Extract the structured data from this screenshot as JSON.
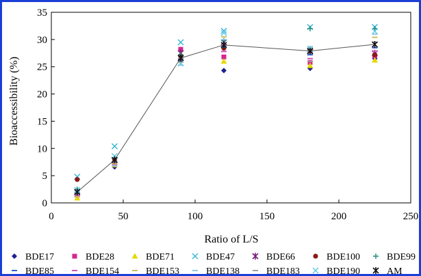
{
  "chart_data": {
    "type": "scatter",
    "title": "",
    "xlabel": "Ratio of L/S",
    "ylabel": "Bioaccessibility (%)",
    "xlim": [
      0,
      250
    ],
    "ylim": [
      0,
      35
    ],
    "xticks": [
      "0",
      "50",
      "100",
      "150",
      "200",
      "250"
    ],
    "yticks": [
      "0",
      "5",
      "10",
      "15",
      "20",
      "25",
      "30",
      "35"
    ],
    "x": [
      18,
      44,
      90,
      120,
      180,
      225
    ],
    "legend_position": "bottom",
    "grid": false,
    "series": [
      {
        "name": "BDE17",
        "marker": "diamond",
        "color": "#1f1f8f",
        "values": [
          1.5,
          6.6,
          26.0,
          24.3,
          24.7,
          26.5
        ]
      },
      {
        "name": "BDE28",
        "marker": "square",
        "color": "#d6258f",
        "values": [
          1.4,
          7.3,
          28.2,
          26.8,
          25.8,
          27.0
        ]
      },
      {
        "name": "BDE71",
        "marker": "triangle",
        "color": "#e6d800",
        "values": [
          0.9,
          7.0,
          26.8,
          26.0,
          25.2,
          26.2
        ]
      },
      {
        "name": "BDE47",
        "marker": "x",
        "color": "#33b5d6",
        "values": [
          4.8,
          10.4,
          29.5,
          31.6,
          32.3,
          32.3
        ]
      },
      {
        "name": "BDE66",
        "marker": "star",
        "color": "#7a1e7a",
        "values": [
          2.0,
          7.8,
          27.5,
          29.5,
          27.8,
          27.5
        ]
      },
      {
        "name": "BDE100",
        "marker": "circle",
        "color": "#8b1a1a",
        "values": [
          4.3,
          8.0,
          27.0,
          28.4,
          28.0,
          27.2
        ]
      },
      {
        "name": "BDE99",
        "marker": "plus",
        "color": "#1a8a7a",
        "values": [
          2.5,
          8.3,
          27.2,
          29.8,
          32.0,
          32.0
        ]
      },
      {
        "name": "BDE85",
        "marker": "dash",
        "color": "#2a5fd0",
        "values": [
          1.8,
          7.5,
          26.5,
          28.6,
          27.2,
          28.5
        ]
      },
      {
        "name": "BDE154",
        "marker": "dash",
        "color": "#d050c0",
        "values": [
          1.3,
          7.0,
          26.2,
          27.8,
          26.5,
          27.8
        ]
      },
      {
        "name": "BDE153",
        "marker": "dash",
        "color": "#c8c060",
        "values": [
          1.1,
          7.2,
          25.8,
          30.5,
          28.4,
          30.4
        ]
      },
      {
        "name": "BDE138",
        "marker": "dash",
        "color": "#90c8e0",
        "values": [
          2.2,
          6.8,
          25.3,
          30.0,
          28.7,
          31.0
        ]
      },
      {
        "name": "BDE183",
        "marker": "dash",
        "color": "#a0a0a0",
        "values": [
          1.6,
          7.6,
          26.6,
          28.8,
          26.0,
          29.5
        ]
      },
      {
        "name": "BDE190",
        "marker": "x",
        "color": "#5ac8e8",
        "values": [
          2.4,
          8.6,
          25.6,
          31.2,
          28.2,
          31.5
        ]
      },
      {
        "name": "AM",
        "marker": "star",
        "color": "#111111",
        "line": true,
        "values": [
          2.0,
          7.9,
          26.6,
          29.0,
          27.9,
          29.1
        ]
      }
    ]
  }
}
